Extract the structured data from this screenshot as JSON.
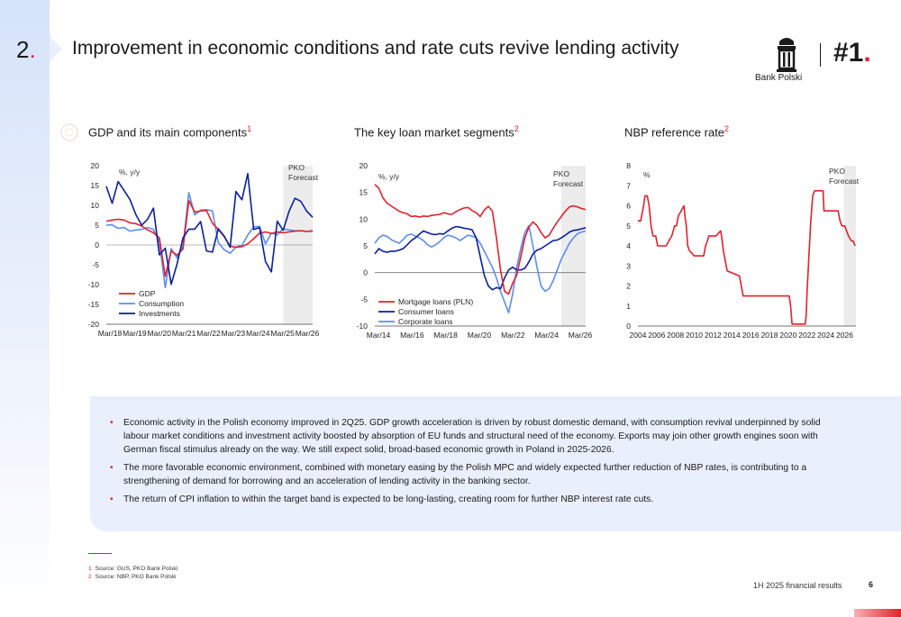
{
  "header": {
    "section_number": "2",
    "section_dot": ".",
    "title": "Improvement in economic conditions and rate cuts revive lending activity",
    "logo_name": "Bank Polski",
    "rank": "#1",
    "rank_dot": "."
  },
  "colors": {
    "accent_red": "#e4202c",
    "navy": "#0a1f9e",
    "light_blue": "#5b8def",
    "forecast_band": "#ececec",
    "info_box": "#e9effb"
  },
  "chart_data": [
    {
      "type": "line",
      "title": "GDP and its main components",
      "title_sup": "1",
      "ylabel": "%, y/y",
      "ylim": [
        -20,
        20
      ],
      "yticks": [
        -20,
        -15,
        -10,
        -5,
        0,
        5,
        10,
        15,
        20
      ],
      "x_labels": [
        "Mar/18",
        "Mar/19",
        "Mar/20",
        "Mar/21",
        "Mar/22",
        "Mar/23",
        "Mar/24",
        "Mar/25",
        "Mar/26"
      ],
      "x_range": [
        0,
        35
      ],
      "forecast_start": 30,
      "forecast_label": "PKO Forecast",
      "legend_position": "bottom-left",
      "series": [
        {
          "name": "GDP",
          "color": "#e4202c",
          "values": [
            6.0,
            6.3,
            6.5,
            6.3,
            5.6,
            5.4,
            4.8,
            3.8,
            3.1,
            1.8,
            -7.9,
            -1.5,
            -2.6,
            -1.0,
            11.2,
            8.3,
            8.6,
            8.7,
            5.5,
            3.9,
            2.1,
            -0.3,
            -0.6,
            -0.4,
            0.3,
            1.6,
            3.0,
            3.3,
            2.9,
            3.3,
            3.1,
            3.3,
            3.5,
            3.6,
            3.4,
            3.6
          ]
        },
        {
          "name": "Consumption",
          "color": "#5b8def",
          "values": [
            5.0,
            5.1,
            4.2,
            4.4,
            3.5,
            3.8,
            3.9,
            4.4,
            3.9,
            0.8,
            -10.8,
            -0.9,
            -3.3,
            -0.2,
            13.2,
            7.6,
            8.8,
            8.9,
            8.6,
            0.6,
            -1.2,
            -2.1,
            -0.5,
            -0.1,
            2.5,
            4.6,
            4.7,
            0.3,
            3.0,
            2.6,
            4.1,
            3.8,
            3.6,
            3.6,
            3.4,
            3.5
          ]
        },
        {
          "name": "Investments",
          "color": "#0a1f9e",
          "values": [
            14.8,
            10.5,
            16.0,
            13.8,
            11.5,
            7.7,
            5.0,
            6.5,
            9.3,
            -2.5,
            -0.8,
            -9.9,
            -4.8,
            1.8,
            4.0,
            4.0,
            5.9,
            -1.5,
            -1.8,
            4.1,
            2.2,
            -0.6,
            13.5,
            11.4,
            18.0,
            3.9,
            4.4,
            -4.2,
            -6.8,
            6.0,
            3.7,
            8.5,
            11.8,
            11.0,
            8.5,
            7.0
          ]
        }
      ]
    },
    {
      "type": "line",
      "title": "The key loan market segments",
      "title_sup": "2",
      "ylabel": "%, y/y",
      "ylim": [
        -10,
        20
      ],
      "yticks": [
        -10,
        -5,
        0,
        5,
        10,
        15,
        20
      ],
      "x_labels": [
        "Mar/14",
        "Mar/16",
        "Mar/18",
        "Mar/20",
        "Mar/22",
        "Mar/24",
        "Mar/26"
      ],
      "x_range": [
        0,
        52
      ],
      "forecast_start": 46,
      "forecast_label": "PKO Forecast",
      "legend_position": "bottom-left",
      "series": [
        {
          "name": "Mortgage loans (PLN)",
          "color": "#e4202c",
          "values": [
            16.5,
            15.8,
            14.0,
            13.0,
            12.5,
            12.0,
            11.5,
            11.2,
            11.0,
            10.5,
            10.6,
            10.4,
            10.6,
            10.5,
            10.7,
            10.8,
            10.9,
            11.2,
            11.0,
            10.9,
            11.4,
            11.8,
            12.1,
            12.2,
            11.6,
            11.2,
            10.5,
            11.7,
            12.4,
            11.5,
            6.5,
            0.5,
            -3.5,
            -4.0,
            -2.0,
            -0.5,
            3.0,
            6.5,
            8.5,
            9.5,
            8.8,
            7.5,
            6.5,
            7.0,
            8.3,
            9.5,
            10.5,
            11.5,
            12.3,
            12.5,
            12.3,
            12.0,
            11.8
          ]
        },
        {
          "name": "Consumer loans",
          "color": "#0a1f9e",
          "values": [
            3.5,
            4.5,
            4.0,
            3.8,
            4.0,
            4.0,
            4.2,
            4.5,
            5.2,
            6.0,
            6.5,
            7.2,
            7.8,
            7.5,
            7.2,
            7.1,
            7.3,
            7.2,
            7.8,
            8.3,
            8.6,
            8.5,
            8.3,
            8.2,
            8.0,
            6.5,
            3.0,
            -0.5,
            -2.5,
            -3.2,
            -2.8,
            -3.0,
            -1.0,
            0.5,
            1.0,
            0.5,
            0.5,
            0.8,
            2.0,
            3.5,
            4.2,
            4.5,
            5.0,
            5.5,
            6.0,
            6.1,
            6.5,
            7.0,
            7.6,
            7.9,
            8.0,
            8.2,
            8.4
          ]
        },
        {
          "name": "Corporate loans",
          "color": "#5b8def",
          "values": [
            5.5,
            6.5,
            7.0,
            6.8,
            6.2,
            5.8,
            5.5,
            6.2,
            7.0,
            7.2,
            6.8,
            6.5,
            6.0,
            5.2,
            4.8,
            5.2,
            5.8,
            6.5,
            7.0,
            6.8,
            6.5,
            6.0,
            6.5,
            7.0,
            6.8,
            6.5,
            5.5,
            4.0,
            2.5,
            1.0,
            -1.0,
            -3.5,
            -5.5,
            -7.5,
            -4.0,
            1.0,
            4.5,
            7.5,
            8.8,
            5.0,
            1.0,
            -2.5,
            -3.5,
            -3.0,
            -1.5,
            0.5,
            2.5,
            4.0,
            5.5,
            6.5,
            7.3,
            7.6,
            7.8
          ]
        }
      ]
    },
    {
      "type": "line",
      "title": "NBP reference rate",
      "title_sup": "2",
      "ylabel": "%",
      "ylim": [
        0,
        8
      ],
      "yticks": [
        0,
        1,
        2,
        3,
        4,
        5,
        6,
        7,
        8
      ],
      "x_labels": [
        "2004",
        "2006",
        "2008",
        "2010",
        "2012",
        "2014",
        "2016",
        "2018",
        "2020",
        "2022",
        "2024",
        "2026"
      ],
      "x_range": [
        2004,
        2027.2
      ],
      "forecast_start": 2025.9,
      "forecast_label": "PKO Forecast",
      "legend_position": "none",
      "series": [
        {
          "name": "",
          "color": "#e4202c",
          "x": [
            2004.0,
            2004.3,
            2004.6,
            2004.75,
            2005.0,
            2005.2,
            2005.4,
            2005.6,
            2005.9,
            2006.1,
            2006.4,
            2007.0,
            2007.3,
            2007.6,
            2007.9,
            2008.1,
            2008.3,
            2008.6,
            2008.9,
            2009.0,
            2009.15,
            2009.3,
            2009.5,
            2010.0,
            2011.0,
            2011.2,
            2011.4,
            2011.55,
            2012.3,
            2012.8,
            2012.9,
            2013.1,
            2013.3,
            2013.5,
            2014.8,
            2015.2,
            2020.1,
            2020.25,
            2020.4,
            2021.8,
            2021.9,
            2022.0,
            2022.2,
            2022.4,
            2022.6,
            2022.8,
            2023.0,
            2023.7,
            2023.8,
            2025.3,
            2025.5,
            2025.7,
            2026.0,
            2026.2,
            2026.4,
            2026.7,
            2026.9,
            2027.1
          ],
          "values": [
            5.25,
            5.25,
            6.0,
            6.5,
            6.5,
            6.0,
            5.0,
            4.5,
            4.5,
            4.0,
            4.0,
            4.0,
            4.25,
            4.5,
            5.0,
            5.0,
            5.5,
            5.75,
            6.0,
            5.5,
            5.0,
            4.0,
            3.75,
            3.5,
            3.5,
            4.0,
            4.25,
            4.5,
            4.5,
            4.75,
            4.5,
            3.75,
            3.25,
            2.75,
            2.5,
            1.5,
            1.5,
            1.0,
            0.1,
            0.1,
            0.5,
            1.75,
            3.5,
            5.25,
            6.5,
            6.75,
            6.75,
            6.75,
            5.75,
            5.75,
            5.25,
            5.0,
            5.0,
            4.75,
            4.5,
            4.25,
            4.25,
            4.0
          ]
        }
      ]
    }
  ],
  "bullets": [
    "Economic activity in the Polish economy improved in 2Q25. GDP growth acceleration is driven by robust domestic demand, with consumption revival underpinned by solid labour market conditions and investment activity boosted by absorption of EU funds and structural need of the economy. Exports may join other growth engines soon with German fiscal stimulus already on the way. We still expect solid, broad-based economic growth in Poland in 2025-2026.",
    "The more favorable economic environment, combined with monetary easing by the Polish MPC and widely expected further reduction of NBP rates, is contributing to a strengthening of demand for borrowing and an acceleration of lending activity in the banking sector.",
    "The return of CPI inflation to within the target band is expected to be long-lasting, creating room for further NBP interest rate cuts."
  ],
  "bullet_marker": "•",
  "footnotes": [
    {
      "num": "1",
      "text": "Source: GUS, PKO Bank Polski"
    },
    {
      "num": "2",
      "text": "Source: NBP, PKO Bank Polski"
    }
  ],
  "footer": {
    "text": "1H 2025 financial results",
    "page": "6"
  }
}
